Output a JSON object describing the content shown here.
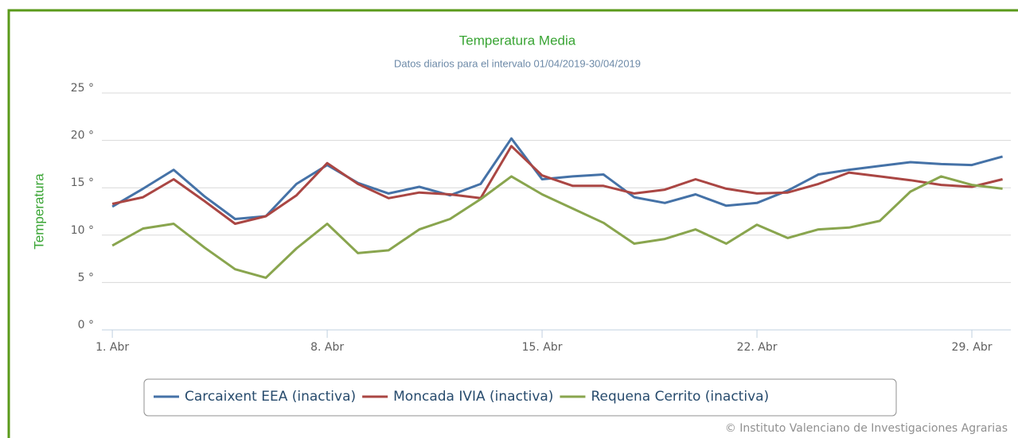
{
  "chart_data": {
    "type": "line",
    "title": "Temperatura Media",
    "subtitle": "Datos diarios para el intervalo 01/04/2019-30/04/2019",
    "y_label": "Temperatura",
    "credit": "© Instituto Valenciano de Investigaciones Agrarias",
    "x": [
      1,
      2,
      3,
      4,
      5,
      6,
      7,
      8,
      9,
      10,
      11,
      12,
      13,
      14,
      15,
      16,
      17,
      18,
      19,
      20,
      21,
      22,
      23,
      24,
      25,
      26,
      27,
      28,
      29,
      30
    ],
    "xlim": [
      0.66,
      30.27
    ],
    "xticks": [
      {
        "value": 1,
        "label": "1. Abr"
      },
      {
        "value": 8,
        "label": "8. Abr"
      },
      {
        "value": 15,
        "label": "15. Abr"
      },
      {
        "value": 22,
        "label": "22. Abr"
      },
      {
        "value": 29,
        "label": "29. Abr"
      }
    ],
    "ylim": [
      0,
      25
    ],
    "yticks": [
      {
        "value": 0,
        "label": "0 °"
      },
      {
        "value": 5,
        "label": "5 °"
      },
      {
        "value": 10,
        "label": "10 °"
      },
      {
        "value": 15,
        "label": "15 °"
      },
      {
        "value": 20,
        "label": "20 °"
      },
      {
        "value": 25,
        "label": "25 °"
      }
    ],
    "grid": true,
    "legend": "bottom",
    "series": [
      {
        "name": "Carcaixent EEA (inactiva)",
        "color": "#4572a7",
        "values": [
          13.0,
          14.9,
          16.9,
          14.1,
          11.7,
          12.0,
          15.4,
          17.4,
          15.5,
          14.4,
          15.1,
          14.2,
          15.4,
          20.2,
          15.9,
          16.2,
          16.4,
          14.0,
          13.4,
          14.3,
          13.1,
          13.4,
          14.7,
          16.4,
          16.9,
          17.3,
          17.7,
          17.5,
          17.4,
          18.3
        ]
      },
      {
        "name": "Moncada IVIA (inactiva)",
        "color": "#aa4643",
        "values": [
          13.3,
          14.0,
          15.9,
          13.6,
          11.2,
          12.0,
          14.2,
          17.6,
          15.4,
          13.9,
          14.5,
          14.3,
          13.9,
          19.4,
          16.3,
          15.2,
          15.2,
          14.4,
          14.8,
          15.9,
          14.9,
          14.4,
          14.5,
          15.4,
          16.6,
          16.2,
          15.8,
          15.3,
          15.1,
          15.9
        ]
      },
      {
        "name": "Requena Cerrito (inactiva)",
        "color": "#89a54e",
        "values": [
          8.9,
          10.7,
          11.2,
          8.7,
          6.4,
          5.5,
          8.6,
          11.2,
          8.1,
          8.4,
          10.6,
          11.7,
          13.8,
          16.2,
          14.3,
          12.8,
          11.3,
          9.1,
          9.6,
          10.6,
          9.1,
          11.1,
          9.7,
          10.6,
          10.8,
          11.5,
          14.6,
          16.2,
          15.3,
          14.9
        ]
      }
    ]
  }
}
